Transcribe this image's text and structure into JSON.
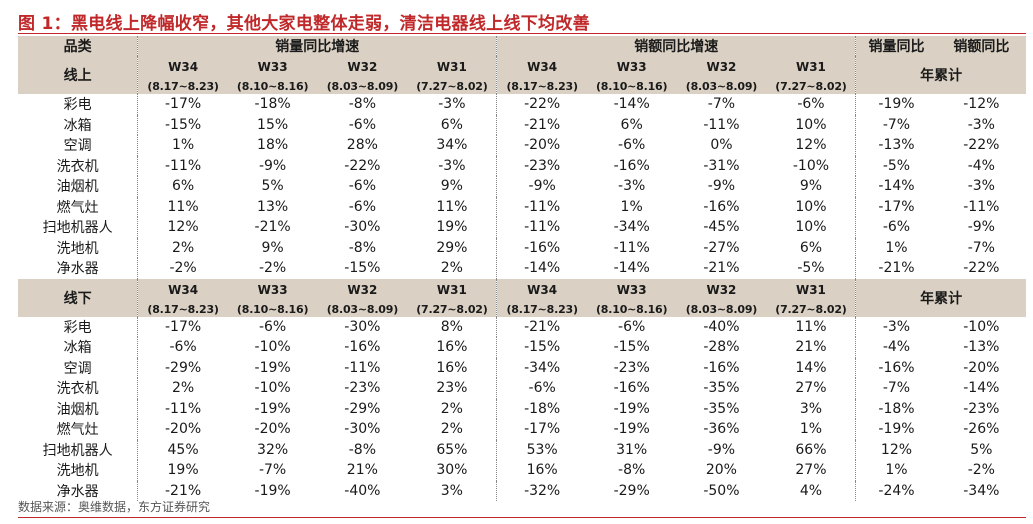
{
  "title": "图 1：黑电线上降幅收窄，其他大家电整体走弱，清洁电器线上线下均改善",
  "source": "数据来源：奥维数据，东方证券研究",
  "colors": {
    "title": "#c0282a",
    "header_bg": "#dad1c4"
  },
  "headers": {
    "category": "品类",
    "volume_yoy": "销量同比增速",
    "value_yoy": "销额同比增速",
    "ytd_volume": "销量同比",
    "ytd_value": "销额同比",
    "ytd": "年累计",
    "online": "线上",
    "offline": "线下",
    "weeks": [
      {
        "week": "W34",
        "range": "(8.17~8.23)"
      },
      {
        "week": "W33",
        "range": "(8.10~8.16)"
      },
      {
        "week": "W32",
        "range": "(8.03~8.09)"
      },
      {
        "week": "W31",
        "range": "(7.27~8.02)"
      }
    ]
  },
  "chart_data": {
    "type": "table",
    "columns": [
      "销量 W34",
      "销量 W33",
      "销量 W32",
      "销量 W31",
      "销额 W34",
      "销额 W33",
      "销额 W32",
      "销额 W31",
      "年累计 销量同比",
      "年累计 销额同比"
    ],
    "online": [
      {
        "name": "彩电",
        "values": [
          "-17%",
          "-18%",
          "-8%",
          "-3%",
          "-22%",
          "-14%",
          "-7%",
          "-6%",
          "-19%",
          "-12%"
        ]
      },
      {
        "name": "冰箱",
        "values": [
          "-15%",
          "15%",
          "-6%",
          "6%",
          "-21%",
          "6%",
          "-11%",
          "10%",
          "-7%",
          "-3%"
        ]
      },
      {
        "name": "空调",
        "values": [
          "1%",
          "18%",
          "28%",
          "34%",
          "-20%",
          "-6%",
          "0%",
          "12%",
          "-13%",
          "-22%"
        ]
      },
      {
        "name": "洗衣机",
        "values": [
          "-11%",
          "-9%",
          "-22%",
          "-3%",
          "-23%",
          "-16%",
          "-31%",
          "-10%",
          "-5%",
          "-4%"
        ]
      },
      {
        "name": "油烟机",
        "values": [
          "6%",
          "5%",
          "-6%",
          "9%",
          "-9%",
          "-3%",
          "-9%",
          "9%",
          "-14%",
          "-3%"
        ]
      },
      {
        "name": "燃气灶",
        "values": [
          "11%",
          "13%",
          "-6%",
          "11%",
          "-11%",
          "1%",
          "-16%",
          "10%",
          "-17%",
          "-11%"
        ]
      },
      {
        "name": "扫地机器人",
        "values": [
          "12%",
          "-21%",
          "-30%",
          "19%",
          "-11%",
          "-34%",
          "-45%",
          "10%",
          "-6%",
          "-9%"
        ]
      },
      {
        "name": "洗地机",
        "values": [
          "2%",
          "9%",
          "-8%",
          "29%",
          "-16%",
          "-11%",
          "-27%",
          "6%",
          "1%",
          "-7%"
        ]
      },
      {
        "name": "净水器",
        "values": [
          "-2%",
          "-2%",
          "-15%",
          "2%",
          "-14%",
          "-14%",
          "-21%",
          "-5%",
          "-21%",
          "-22%"
        ]
      }
    ],
    "offline": [
      {
        "name": "彩电",
        "values": [
          "-17%",
          "-6%",
          "-30%",
          "8%",
          "-21%",
          "-6%",
          "-40%",
          "11%",
          "-3%",
          "-10%"
        ]
      },
      {
        "name": "冰箱",
        "values": [
          "-6%",
          "-10%",
          "-16%",
          "16%",
          "-15%",
          "-15%",
          "-28%",
          "21%",
          "-4%",
          "-13%"
        ]
      },
      {
        "name": "空调",
        "values": [
          "-29%",
          "-19%",
          "-11%",
          "16%",
          "-34%",
          "-23%",
          "-16%",
          "14%",
          "-16%",
          "-20%"
        ]
      },
      {
        "name": "洗衣机",
        "values": [
          "2%",
          "-10%",
          "-23%",
          "23%",
          "-6%",
          "-16%",
          "-35%",
          "27%",
          "-7%",
          "-14%"
        ]
      },
      {
        "name": "油烟机",
        "values": [
          "-11%",
          "-19%",
          "-29%",
          "2%",
          "-18%",
          "-19%",
          "-35%",
          "3%",
          "-18%",
          "-23%"
        ]
      },
      {
        "name": "燃气灶",
        "values": [
          "-20%",
          "-20%",
          "-30%",
          "2%",
          "-17%",
          "-19%",
          "-36%",
          "1%",
          "-19%",
          "-26%"
        ]
      },
      {
        "name": "扫地机器人",
        "values": [
          "45%",
          "32%",
          "-8%",
          "65%",
          "53%",
          "31%",
          "-9%",
          "66%",
          "12%",
          "5%"
        ]
      },
      {
        "name": "洗地机",
        "values": [
          "19%",
          "-7%",
          "21%",
          "30%",
          "16%",
          "-8%",
          "20%",
          "27%",
          "1%",
          "-2%"
        ]
      },
      {
        "name": "净水器",
        "values": [
          "-21%",
          "-19%",
          "-40%",
          "3%",
          "-32%",
          "-29%",
          "-50%",
          "4%",
          "-24%",
          "-34%"
        ]
      }
    ]
  }
}
